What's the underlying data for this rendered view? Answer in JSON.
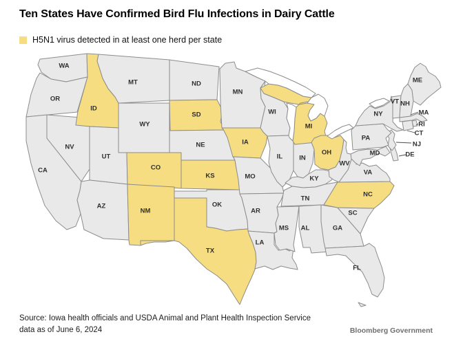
{
  "title": "Ten States Have Confirmed Bird Flu Infections in Dairy Cattle",
  "legend": {
    "label": "H5N1 virus detected in at least one herd per state",
    "swatch_color": "#F6DD81"
  },
  "map": {
    "highlight_color": "#F6DD81",
    "state_color": "#E9E9E9",
    "border_color": "#8C8C8C",
    "water_color": "#FFFFFF",
    "highlighted_states": [
      "ID",
      "SD",
      "IA",
      "CO",
      "KS",
      "NM",
      "TX",
      "MI",
      "OH",
      "NC"
    ],
    "states": [
      {
        "abbr": "WA",
        "highlighted": false
      },
      {
        "abbr": "OR",
        "highlighted": false
      },
      {
        "abbr": "CA",
        "highlighted": false
      },
      {
        "abbr": "NV",
        "highlighted": false
      },
      {
        "abbr": "ID",
        "highlighted": true
      },
      {
        "abbr": "UT",
        "highlighted": false
      },
      {
        "abbr": "AZ",
        "highlighted": false
      },
      {
        "abbr": "MT",
        "highlighted": false
      },
      {
        "abbr": "WY",
        "highlighted": false
      },
      {
        "abbr": "CO",
        "highlighted": true
      },
      {
        "abbr": "NM",
        "highlighted": true
      },
      {
        "abbr": "ND",
        "highlighted": false
      },
      {
        "abbr": "SD",
        "highlighted": true
      },
      {
        "abbr": "NE",
        "highlighted": false
      },
      {
        "abbr": "KS",
        "highlighted": true
      },
      {
        "abbr": "OK",
        "highlighted": false
      },
      {
        "abbr": "TX",
        "highlighted": true
      },
      {
        "abbr": "MN",
        "highlighted": false
      },
      {
        "abbr": "IA",
        "highlighted": true
      },
      {
        "abbr": "MO",
        "highlighted": false
      },
      {
        "abbr": "AR",
        "highlighted": false
      },
      {
        "abbr": "LA",
        "highlighted": false
      },
      {
        "abbr": "WI",
        "highlighted": false
      },
      {
        "abbr": "IL",
        "highlighted": false
      },
      {
        "abbr": "IN",
        "highlighted": false
      },
      {
        "abbr": "MI",
        "highlighted": true
      },
      {
        "abbr": "OH",
        "highlighted": true
      },
      {
        "abbr": "KY",
        "highlighted": false
      },
      {
        "abbr": "TN",
        "highlighted": false
      },
      {
        "abbr": "MS",
        "highlighted": false
      },
      {
        "abbr": "AL",
        "highlighted": false
      },
      {
        "abbr": "GA",
        "highlighted": false
      },
      {
        "abbr": "FL",
        "highlighted": false
      },
      {
        "abbr": "SC",
        "highlighted": false
      },
      {
        "abbr": "NC",
        "highlighted": true
      },
      {
        "abbr": "VA",
        "highlighted": false
      },
      {
        "abbr": "WV",
        "highlighted": false
      },
      {
        "abbr": "MD",
        "highlighted": false
      },
      {
        "abbr": "DE",
        "highlighted": false
      },
      {
        "abbr": "NJ",
        "highlighted": false
      },
      {
        "abbr": "PA",
        "highlighted": false
      },
      {
        "abbr": "NY",
        "highlighted": false
      },
      {
        "abbr": "VT",
        "highlighted": false
      },
      {
        "abbr": "NH",
        "highlighted": false
      },
      {
        "abbr": "MA",
        "highlighted": false
      },
      {
        "abbr": "RI",
        "highlighted": false
      },
      {
        "abbr": "CT",
        "highlighted": false
      },
      {
        "abbr": "ME",
        "highlighted": false
      }
    ]
  },
  "source": {
    "line1": "Source: Iowa health officials and USDA Animal and Plant Health Inspection Service",
    "line2": "data as of June 6, 2024"
  },
  "attribution": "Bloomberg Government"
}
